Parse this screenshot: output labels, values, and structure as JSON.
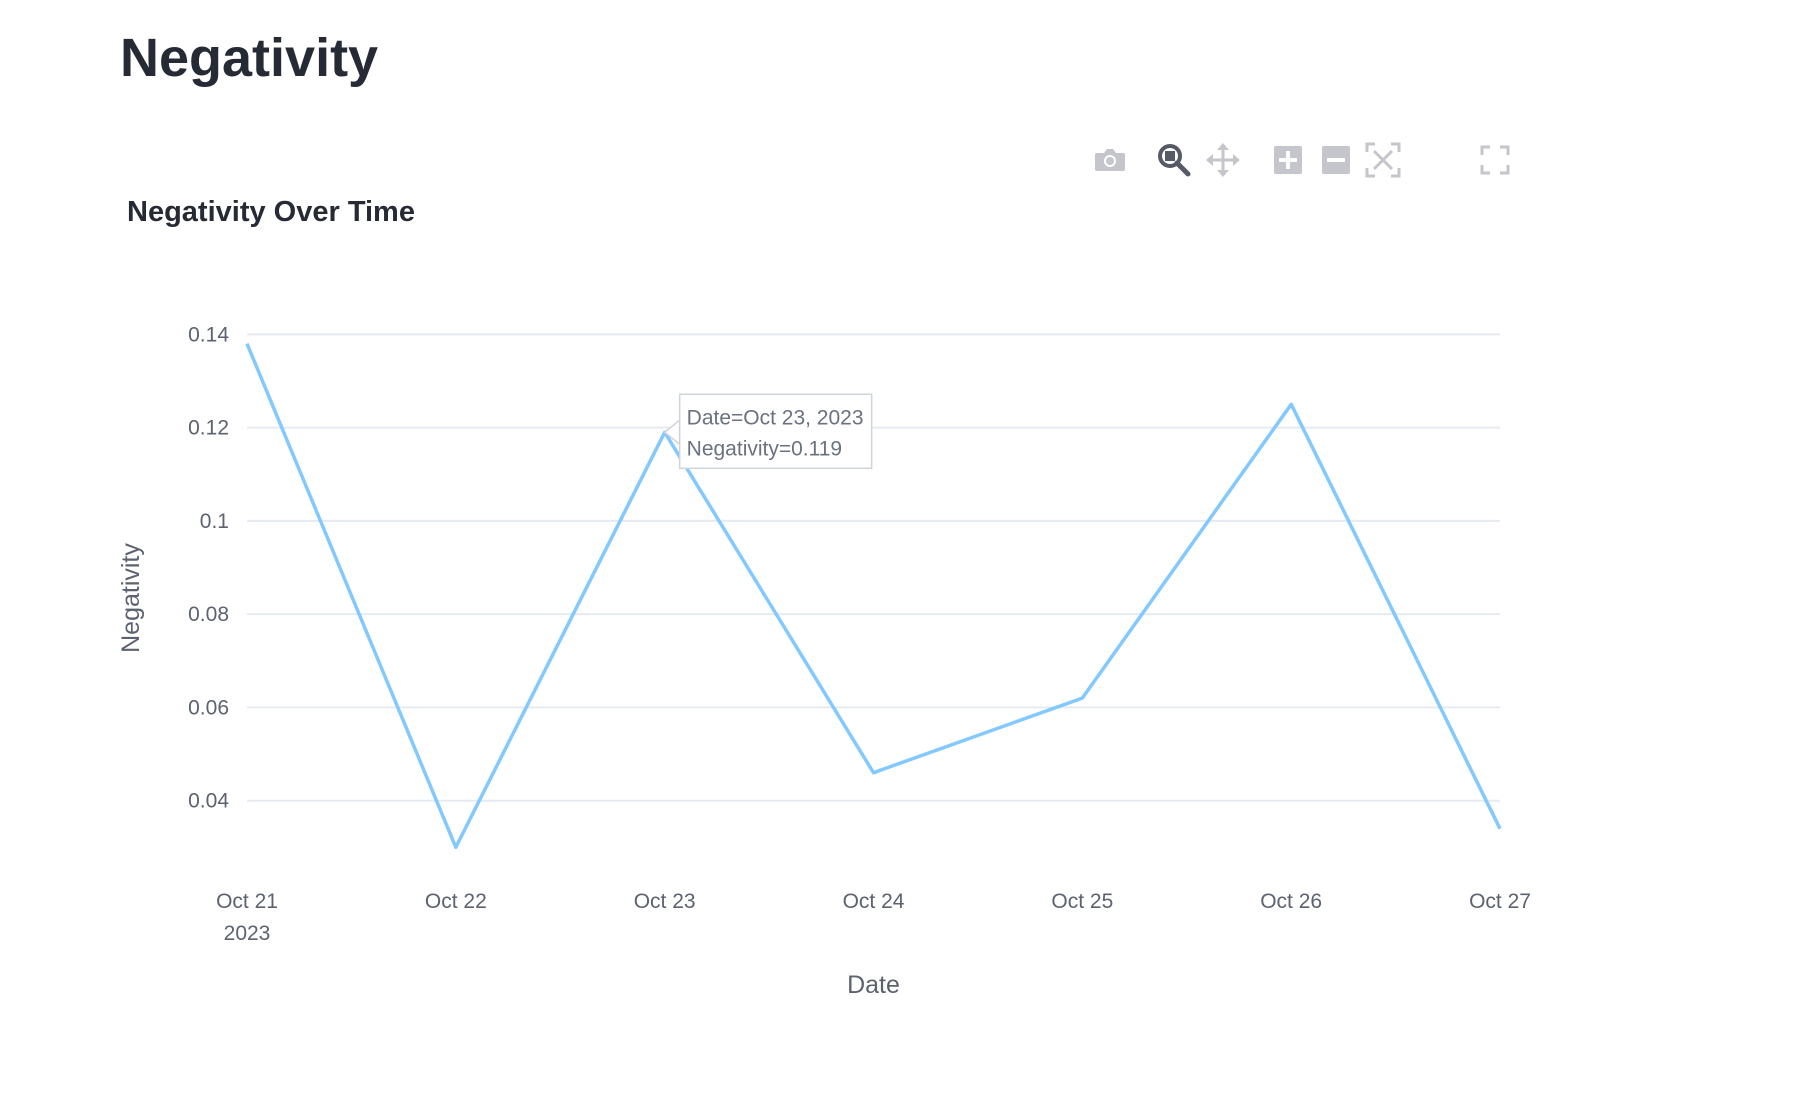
{
  "page": {
    "title": "Negativity"
  },
  "modebar": {
    "buttons": [
      {
        "name": "camera-icon",
        "label": "Download plot as a png"
      },
      {
        "name": "zoom-icon",
        "label": "Zoom"
      },
      {
        "name": "pan-icon",
        "label": "Pan"
      },
      {
        "name": "zoom-in-icon",
        "label": "Zoom in"
      },
      {
        "name": "zoom-out-icon",
        "label": "Zoom out"
      },
      {
        "name": "autoscale-icon",
        "label": "Autoscale"
      },
      {
        "name": "fullscreen-icon",
        "label": "View fullscreen"
      }
    ],
    "active": "zoom-icon",
    "colors": {
      "inactive": "#c4c6cc",
      "active": "#555a66"
    }
  },
  "chart_data": {
    "type": "line",
    "title": "Negativity Over Time",
    "xlabel": "Date",
    "ylabel": "Negativity",
    "x": [
      "2023-10-21",
      "2023-10-22",
      "2023-10-23",
      "2023-10-24",
      "2023-10-25",
      "2023-10-26",
      "2023-10-27"
    ],
    "series": [
      {
        "values": [
          0.138,
          0.03,
          0.119,
          0.046,
          0.062,
          0.125,
          0.034
        ]
      }
    ],
    "x_ticks": [
      "Oct 21",
      "Oct 22",
      "Oct 23",
      "Oct 24",
      "Oct 25",
      "Oct 26",
      "Oct 27"
    ],
    "x_tick_year": "2023",
    "y_ticks": [
      0.04,
      0.06,
      0.08,
      0.1,
      0.12,
      0.14
    ],
    "y_tick_labels": [
      "0.04",
      "0.06",
      "0.08",
      "0.1",
      "0.12",
      "0.14"
    ],
    "ylim": [
      0.0305,
      0.1405
    ],
    "grid": true,
    "line_color": "#83c9ff",
    "grid_color": "#e6eaf1",
    "tooltip": {
      "index": 2,
      "lines": [
        "Date=Oct 23, 2023",
        "Negativity=0.119"
      ]
    }
  }
}
